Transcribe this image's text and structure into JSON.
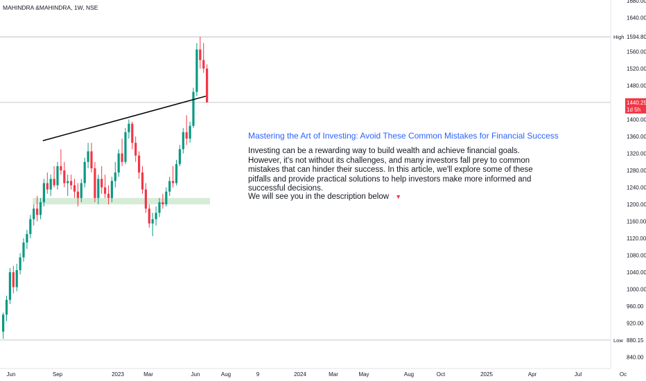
{
  "header": {
    "symbol": "MAHINDRA &MAHINDRA, 1W, NSE"
  },
  "annotation": {
    "title": "Mastering the Art of Investing: Avoid These Common Mistakes for Financial Success",
    "body": "Investing can be a rewarding way to build wealth and achieve financial goals. However, it's not without its challenges, and many investors fall prey to common mistakes that can hinder their success. In this article, we'll explore some of these pitfalls and provide practical solutions to help investors make more informed and successful decisions.",
    "cta": "We will see you in the description below",
    "cta_arrow": "▼"
  },
  "chart_data": {
    "type": "candlestick",
    "y_ticks": [
      1680,
      1640,
      1600,
      1560,
      1520,
      1480,
      1440,
      1400,
      1360,
      1320,
      1280,
      1240,
      1200,
      1160,
      1120,
      1080,
      1040,
      1000,
      960,
      920,
      880,
      840
    ],
    "y_tick_labels": [
      "1680.00",
      "1640.00",
      "1600.00",
      "1560.00",
      "1520.00",
      "1480.00",
      "1440.00",
      "1400.00",
      "1360.00",
      "1320.00",
      "1280.00",
      "1240.00",
      "1200.00",
      "1160.00",
      "1120.00",
      "1080.00",
      "1040.00",
      "1000.00",
      "960.00",
      "920.00",
      "880.00",
      "840.00"
    ],
    "x_labels": [
      "Jun",
      "Sep",
      "2023",
      "Mar",
      "Jun",
      "Aug",
      "9",
      "2024",
      "Mar",
      "May",
      "Aug",
      "Oct",
      "2025",
      "Apr",
      "Jul",
      "Oc"
    ],
    "price_labels": {
      "high_label": "High",
      "high_value": "1594.80",
      "low_label": "Low",
      "low_value": "880.15",
      "last_value": "1440.25",
      "last_sub": "1d 5h"
    },
    "colors": {
      "up": "#089981",
      "down": "#f23645",
      "last_bg": "#f23645",
      "zone": "#c8e6c9",
      "trend": "#000000",
      "axis_text": "#131722",
      "grid": "#e0e3eb"
    },
    "candles": [
      {
        "o": 900,
        "h": 945,
        "l": 883,
        "c": 940
      },
      {
        "o": 940,
        "h": 985,
        "l": 925,
        "c": 975
      },
      {
        "o": 975,
        "h": 1050,
        "l": 965,
        "c": 1040
      },
      {
        "o": 1040,
        "h": 1055,
        "l": 990,
        "c": 1005
      },
      {
        "o": 1005,
        "h": 1060,
        "l": 995,
        "c": 1045
      },
      {
        "o": 1045,
        "h": 1085,
        "l": 1035,
        "c": 1075
      },
      {
        "o": 1075,
        "h": 1120,
        "l": 1065,
        "c": 1110
      },
      {
        "o": 1110,
        "h": 1140,
        "l": 1095,
        "c": 1130
      },
      {
        "o": 1130,
        "h": 1175,
        "l": 1120,
        "c": 1165
      },
      {
        "o": 1165,
        "h": 1200,
        "l": 1150,
        "c": 1190
      },
      {
        "o": 1190,
        "h": 1220,
        "l": 1160,
        "c": 1175
      },
      {
        "o": 1175,
        "h": 1215,
        "l": 1165,
        "c": 1205
      },
      {
        "o": 1205,
        "h": 1260,
        "l": 1195,
        "c": 1250
      },
      {
        "o": 1250,
        "h": 1275,
        "l": 1225,
        "c": 1235
      },
      {
        "o": 1235,
        "h": 1270,
        "l": 1220,
        "c": 1260
      },
      {
        "o": 1260,
        "h": 1290,
        "l": 1240,
        "c": 1245
      },
      {
        "o": 1245,
        "h": 1300,
        "l": 1235,
        "c": 1290
      },
      {
        "o": 1290,
        "h": 1330,
        "l": 1270,
        "c": 1280
      },
      {
        "o": 1280,
        "h": 1300,
        "l": 1240,
        "c": 1250
      },
      {
        "o": 1250,
        "h": 1270,
        "l": 1220,
        "c": 1255
      },
      {
        "o": 1255,
        "h": 1270,
        "l": 1235,
        "c": 1245
      },
      {
        "o": 1245,
        "h": 1260,
        "l": 1215,
        "c": 1230
      },
      {
        "o": 1230,
        "h": 1250,
        "l": 1195,
        "c": 1215
      },
      {
        "o": 1215,
        "h": 1260,
        "l": 1205,
        "c": 1250
      },
      {
        "o": 1250,
        "h": 1310,
        "l": 1240,
        "c": 1300
      },
      {
        "o": 1300,
        "h": 1345,
        "l": 1285,
        "c": 1325
      },
      {
        "o": 1325,
        "h": 1345,
        "l": 1275,
        "c": 1285
      },
      {
        "o": 1285,
        "h": 1300,
        "l": 1205,
        "c": 1215
      },
      {
        "o": 1215,
        "h": 1270,
        "l": 1200,
        "c": 1260
      },
      {
        "o": 1260,
        "h": 1290,
        "l": 1225,
        "c": 1240
      },
      {
        "o": 1240,
        "h": 1270,
        "l": 1215,
        "c": 1225
      },
      {
        "o": 1225,
        "h": 1245,
        "l": 1200,
        "c": 1215
      },
      {
        "o": 1215,
        "h": 1265,
        "l": 1205,
        "c": 1255
      },
      {
        "o": 1255,
        "h": 1300,
        "l": 1240,
        "c": 1275
      },
      {
        "o": 1275,
        "h": 1330,
        "l": 1265,
        "c": 1320
      },
      {
        "o": 1320,
        "h": 1355,
        "l": 1290,
        "c": 1300
      },
      {
        "o": 1300,
        "h": 1380,
        "l": 1295,
        "c": 1370
      },
      {
        "o": 1370,
        "h": 1400,
        "l": 1355,
        "c": 1390
      },
      {
        "o": 1390,
        "h": 1395,
        "l": 1330,
        "c": 1345
      },
      {
        "o": 1345,
        "h": 1360,
        "l": 1300,
        "c": 1315
      },
      {
        "o": 1315,
        "h": 1325,
        "l": 1260,
        "c": 1275
      },
      {
        "o": 1275,
        "h": 1290,
        "l": 1225,
        "c": 1235
      },
      {
        "o": 1235,
        "h": 1250,
        "l": 1180,
        "c": 1190
      },
      {
        "o": 1190,
        "h": 1200,
        "l": 1145,
        "c": 1155
      },
      {
        "o": 1155,
        "h": 1180,
        "l": 1125,
        "c": 1165
      },
      {
        "o": 1165,
        "h": 1195,
        "l": 1150,
        "c": 1180
      },
      {
        "o": 1180,
        "h": 1215,
        "l": 1170,
        "c": 1205
      },
      {
        "o": 1205,
        "h": 1225,
        "l": 1190,
        "c": 1200
      },
      {
        "o": 1200,
        "h": 1240,
        "l": 1195,
        "c": 1230
      },
      {
        "o": 1230,
        "h": 1265,
        "l": 1220,
        "c": 1255
      },
      {
        "o": 1255,
        "h": 1290,
        "l": 1240,
        "c": 1250
      },
      {
        "o": 1250,
        "h": 1305,
        "l": 1245,
        "c": 1295
      },
      {
        "o": 1295,
        "h": 1340,
        "l": 1290,
        "c": 1330
      },
      {
        "o": 1330,
        "h": 1380,
        "l": 1320,
        "c": 1370
      },
      {
        "o": 1370,
        "h": 1410,
        "l": 1340,
        "c": 1355
      },
      {
        "o": 1355,
        "h": 1395,
        "l": 1345,
        "c": 1385
      },
      {
        "o": 1385,
        "h": 1475,
        "l": 1380,
        "c": 1465
      },
      {
        "o": 1465,
        "h": 1580,
        "l": 1455,
        "c": 1565
      },
      {
        "o": 1565,
        "h": 1594.8,
        "l": 1520,
        "c": 1540
      },
      {
        "o": 1540,
        "h": 1580,
        "l": 1510,
        "c": 1520
      },
      {
        "o": 1520,
        "h": 1530,
        "l": 1440,
        "c": 1440.25
      }
    ],
    "trendline": {
      "from": {
        "i": 12,
        "y": 1350
      },
      "to": {
        "i": 60,
        "y": 1455
      }
    },
    "support_zone": {
      "from_i": 9,
      "to_i": 60,
      "y_low": 1200,
      "y_high": 1215
    }
  }
}
